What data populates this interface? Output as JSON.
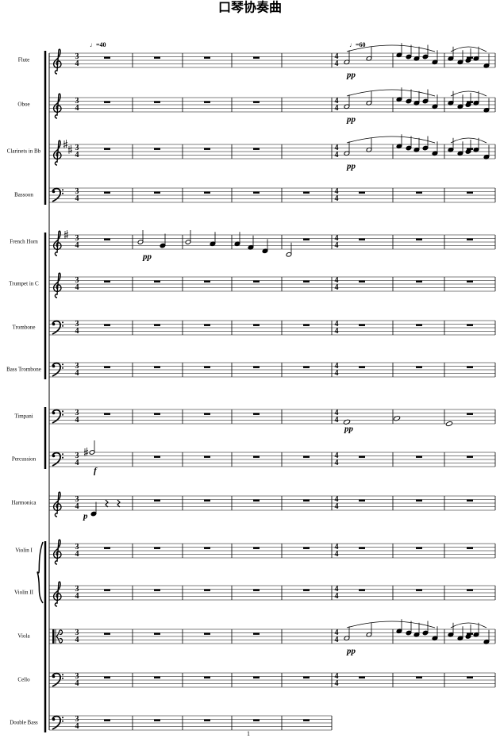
{
  "header": {
    "title": "口琴协奏曲"
  },
  "tempos": [
    "♩=40",
    "♩=60"
  ],
  "meters": [
    {
      "top": "3",
      "bottom": "4"
    },
    {
      "top": "4",
      "bottom": "4"
    }
  ],
  "instruments": [
    {
      "name": "Flute",
      "dynamic": "pp"
    },
    {
      "name": "Oboe",
      "dynamic": "pp"
    },
    {
      "name": "Clarinets in Bb",
      "dynamic": "pp"
    },
    {
      "name": "Bassoon"
    },
    {
      "name": "French Horn",
      "dynamic": "pp"
    },
    {
      "name": "Trumpet in C"
    },
    {
      "name": "Trombone"
    },
    {
      "name": "Bass Trombone"
    },
    {
      "name": "Timpani",
      "dynamic": "pp"
    },
    {
      "name": "Percussion",
      "dynamic": "f"
    },
    {
      "name": "Harmonica",
      "dynamic": "p"
    },
    {
      "name": "Violin I"
    },
    {
      "name": "Violin II"
    },
    {
      "name": "Viola",
      "dynamic": "pp"
    },
    {
      "name": "Cello"
    },
    {
      "name": "Double Bass"
    }
  ],
  "page_number": "1"
}
